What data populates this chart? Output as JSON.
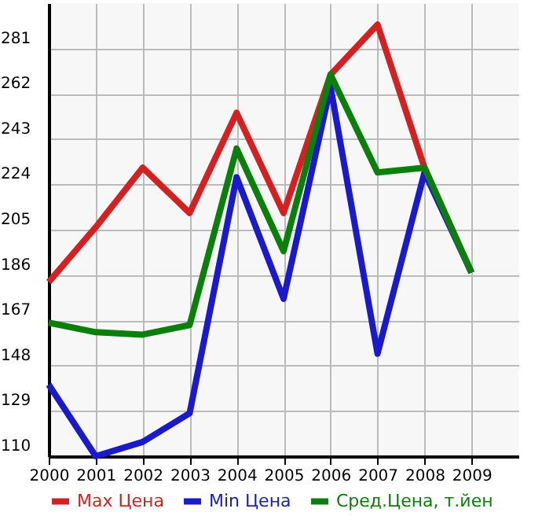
{
  "chart_data": {
    "type": "line",
    "x": [
      2000,
      2001,
      2002,
      2003,
      2004,
      2005,
      2006,
      2007,
      2008,
      2009
    ],
    "series": [
      {
        "name": "Max Цена",
        "color": "#d42020",
        "values": [
          183,
          206,
          231,
          212,
          254,
          212,
          270,
          291,
          231,
          187
        ]
      },
      {
        "name": "Min Цена",
        "color": "#1a1acc",
        "values": [
          140,
          110,
          116,
          128,
          227,
          176,
          265,
          153,
          229,
          187
        ]
      },
      {
        "name": "Сред.Цена, т.йен",
        "color": "#0a800a",
        "values": [
          166,
          162,
          161,
          165,
          239,
          196,
          270,
          229,
          231,
          187
        ]
      }
    ],
    "xlim": [
      2000,
      2010
    ],
    "xticks": [
      2000,
      2001,
      2002,
      2003,
      2004,
      2005,
      2006,
      2007,
      2008,
      2009
    ],
    "ylim": [
      110,
      300
    ],
    "yticks": [
      110,
      129,
      148,
      167,
      186,
      205,
      224,
      243,
      262,
      281
    ],
    "grid": true,
    "legend": "bottom",
    "marker": "none",
    "line_style": "solid"
  }
}
